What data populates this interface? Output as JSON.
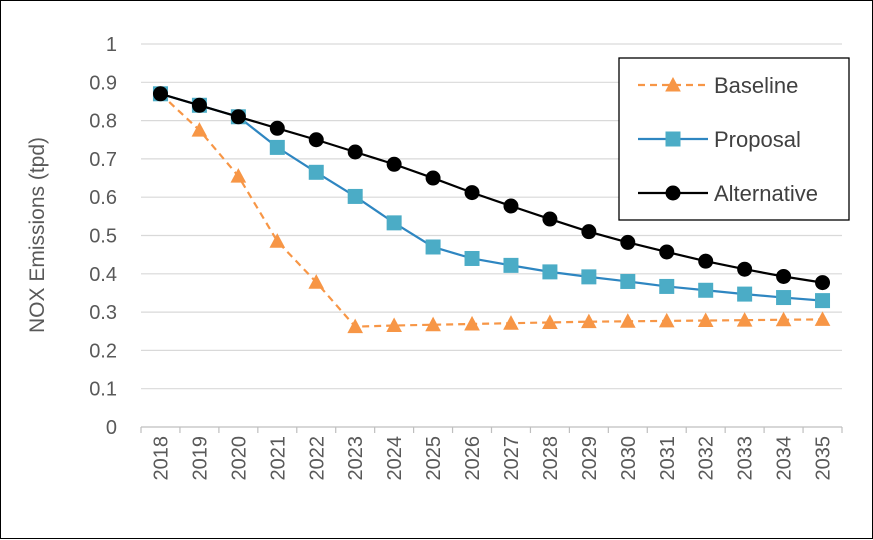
{
  "chart_data": {
    "type": "line",
    "title": "",
    "xlabel": "",
    "ylabel": "NOX Emissions (tpd)",
    "ylim": [
      0,
      1
    ],
    "yticks": [
      "0",
      "0.1",
      "0.2",
      "0.3",
      "0.4",
      "0.5",
      "0.6",
      "0.7",
      "0.8",
      "0.9",
      "1"
    ],
    "categories": [
      "2018",
      "2019",
      "2020",
      "2021",
      "2022",
      "2023",
      "2024",
      "2025",
      "2026",
      "2027",
      "2028",
      "2029",
      "2030",
      "2031",
      "2032",
      "2033",
      "2034",
      "2035"
    ],
    "grid": true,
    "legend_position": "top-right",
    "series": [
      {
        "name": "Baseline",
        "color": "#F79646",
        "line_style": "dashed",
        "marker": "triangle",
        "values": [
          0.87,
          0.775,
          0.655,
          0.485,
          0.378,
          0.262,
          0.265,
          0.267,
          0.269,
          0.271,
          0.273,
          0.275,
          0.276,
          0.277,
          0.278,
          0.279,
          0.28,
          0.281
        ]
      },
      {
        "name": "Proposal",
        "color": "#2E86C1",
        "marker_color": "#4BACC6",
        "line_style": "solid",
        "marker": "square",
        "values": [
          0.87,
          0.84,
          0.81,
          0.73,
          0.665,
          0.602,
          0.533,
          0.47,
          0.44,
          0.422,
          0.405,
          0.392,
          0.38,
          0.367,
          0.357,
          0.347,
          0.338,
          0.33
        ]
      },
      {
        "name": "Alternative",
        "color": "#000000",
        "line_style": "solid",
        "marker": "circle",
        "values": [
          0.87,
          0.84,
          0.81,
          0.78,
          0.75,
          0.718,
          0.686,
          0.65,
          0.612,
          0.577,
          0.543,
          0.51,
          0.482,
          0.457,
          0.433,
          0.412,
          0.393,
          0.377
        ]
      }
    ]
  }
}
